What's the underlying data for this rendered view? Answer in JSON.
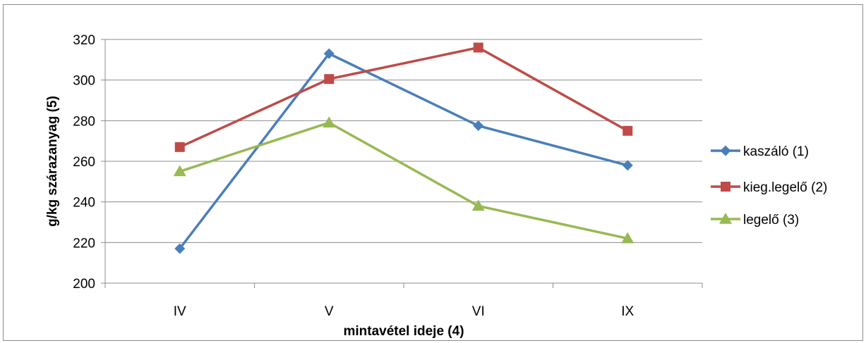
{
  "chart_data": {
    "type": "line",
    "title": "",
    "xlabel": "mintavétel ideje (4)",
    "ylabel": "g/kg szárazanyag (5)",
    "categories": [
      "IV",
      "V",
      "VI",
      "IX"
    ],
    "ylim": [
      200,
      320
    ],
    "yticks": [
      200,
      220,
      240,
      260,
      280,
      300,
      320
    ],
    "grid": true,
    "legend_position": "right",
    "series": [
      {
        "name": "kaszáló (1)",
        "color": "#4a7ebb",
        "marker": "diamond",
        "values": [
          217,
          313,
          277.5,
          258
        ]
      },
      {
        "name": "kieg.legelő (2)",
        "color": "#be4b48",
        "marker": "square",
        "values": [
          267,
          300.5,
          316,
          275
        ]
      },
      {
        "name": "legelő (3)",
        "color": "#98b954",
        "marker": "triangle",
        "values": [
          255,
          279,
          238,
          222
        ]
      }
    ]
  }
}
